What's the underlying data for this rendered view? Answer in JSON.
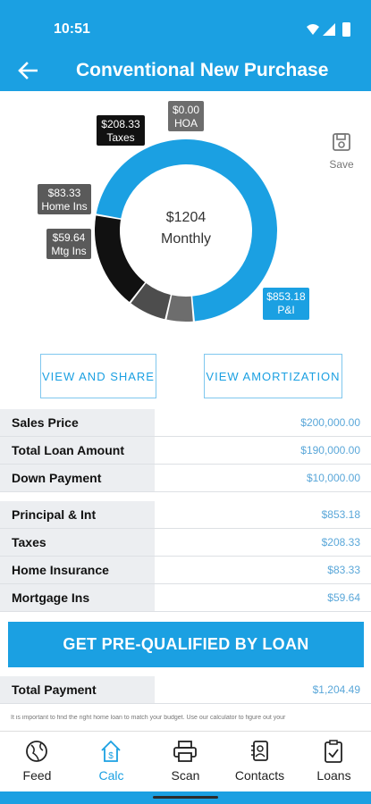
{
  "status": {
    "time": "10:51"
  },
  "header": {
    "title": "Conventional New Purchase"
  },
  "center": {
    "amount": "$1204",
    "period": "Monthly"
  },
  "save_label": "Save",
  "chart_data": {
    "type": "pie",
    "donut": true,
    "slices": [
      {
        "value": 853.18,
        "label": "$853.18",
        "name": "P&I",
        "color": "#1ba0e2"
      },
      {
        "value": 59.64,
        "label": "$59.64",
        "name": "Mtg Ins",
        "color": "#6d6d6d"
      },
      {
        "value": 83.33,
        "label": "$83.33",
        "name": "Home Ins",
        "color": "#4d4d4d"
      },
      {
        "value": 208.33,
        "label": "$208.33",
        "name": "Taxes",
        "color": "#111111"
      },
      {
        "value": 0.0,
        "label": "$0.00",
        "name": "HOA",
        "color": "#8a8a8a"
      }
    ]
  },
  "buttons": {
    "view_share": "VIEW AND SHARE",
    "view_amort": "VIEW AMORTIZATION",
    "prequal": "GET PRE-QUALIFIED BY LOAN"
  },
  "loan_rows": [
    {
      "label": "Sales Price",
      "value": "$200,000.00"
    },
    {
      "label": "Total Loan Amount",
      "value": "$190,000.00"
    },
    {
      "label": "Down Payment",
      "value": "$10,000.00"
    }
  ],
  "payment_rows": [
    {
      "label": "Principal & Int",
      "value": "$853.18"
    },
    {
      "label": "Taxes",
      "value": "$208.33"
    },
    {
      "label": "Home Insurance",
      "value": "$83.33"
    },
    {
      "label": "Mortgage Ins",
      "value": "$59.64"
    }
  ],
  "total_row": {
    "label": "Total Payment",
    "value": "$1,204.49"
  },
  "disclaimer": "It is important to find the right home loan to match your budget. Use our calculator to figure out your",
  "nav": [
    {
      "label": "Feed",
      "icon": "globe-icon"
    },
    {
      "label": "Calc",
      "icon": "house-dollar-icon"
    },
    {
      "label": "Scan",
      "icon": "printer-icon"
    },
    {
      "label": "Contacts",
      "icon": "contacts-icon"
    },
    {
      "label": "Loans",
      "icon": "clipboard-check-icon"
    }
  ]
}
